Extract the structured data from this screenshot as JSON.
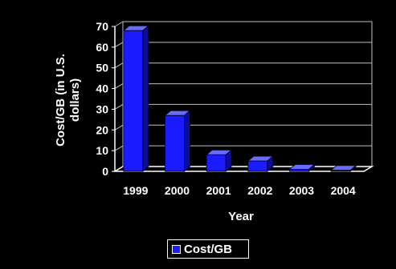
{
  "chart_data": {
    "type": "bar",
    "categories": [
      "1999",
      "2000",
      "2001",
      "2002",
      "2003",
      "2004"
    ],
    "series": [
      {
        "name": "Cost/GB",
        "values": [
          68,
          27,
          8,
          5,
          1,
          0.5
        ],
        "color": "#1b1bff"
      }
    ],
    "ylabel": "Cost/GB (in U.S. dollars)",
    "ylabel_lines": [
      "Cost/GB (in U.S.",
      "dollars)"
    ],
    "xlabel": "Year",
    "ylim": [
      0,
      70
    ],
    "yticks": [
      0,
      10,
      20,
      30,
      40,
      50,
      60,
      70
    ],
    "grid": true,
    "three_d": true,
    "legend": "bottom-center"
  },
  "legend": {
    "label": "Cost/GB"
  }
}
